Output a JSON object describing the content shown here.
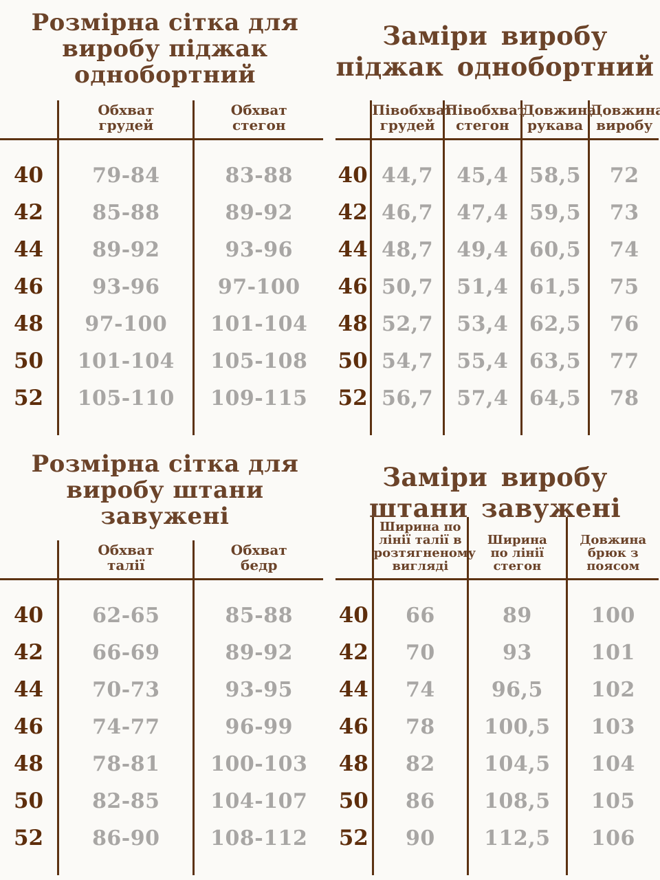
{
  "page": {
    "background": "#fbfaf7",
    "title_color": "#6b4329",
    "line_color": "#5c3212",
    "size_color": "#5e2e0c",
    "value_color": "#a8a6a4",
    "language": "uk"
  },
  "sizes": [
    "40",
    "42",
    "44",
    "46",
    "48",
    "50",
    "52"
  ],
  "tables": [
    {
      "name": "jacket-size-grid",
      "title": "Розмірна сітка для\nвиробу піджак\nоднобортний",
      "columns": [
        "Обхват\nгрудей",
        "Обхват\nстегон"
      ],
      "rows": [
        [
          "79-84",
          "83-88"
        ],
        [
          "85-88",
          "89-92"
        ],
        [
          "89-92",
          "93-96"
        ],
        [
          "93-96",
          "97-100"
        ],
        [
          "97-100",
          "101-104"
        ],
        [
          "101-104",
          "105-108"
        ],
        [
          "105-110",
          "109-115"
        ]
      ]
    },
    {
      "name": "jacket-measurements",
      "title": "Заміри виробу\nпіджак однобортний",
      "columns": [
        "Півобхват\nгрудей",
        "Півобхват\nстегон",
        "Довжина\nрукава",
        "Довжина\nвиробу"
      ],
      "rows": [
        [
          "44,7",
          "45,4",
          "58,5",
          "72"
        ],
        [
          "46,7",
          "47,4",
          "59,5",
          "73"
        ],
        [
          "48,7",
          "49,4",
          "60,5",
          "74"
        ],
        [
          "50,7",
          "51,4",
          "61,5",
          "75"
        ],
        [
          "52,7",
          "53,4",
          "62,5",
          "76"
        ],
        [
          "54,7",
          "55,4",
          "63,5",
          "77"
        ],
        [
          "56,7",
          "57,4",
          "64,5",
          "78"
        ]
      ]
    },
    {
      "name": "pants-size-grid",
      "title": "Розмірна сітка для\nвиробу штани\nзавужені",
      "columns": [
        "Обхват\nталії",
        "Обхват\nбедр"
      ],
      "rows": [
        [
          "62-65",
          "85-88"
        ],
        [
          "66-69",
          "89-92"
        ],
        [
          "70-73",
          "93-95"
        ],
        [
          "74-77",
          "96-99"
        ],
        [
          "78-81",
          "100-103"
        ],
        [
          "82-85",
          "104-107"
        ],
        [
          "86-90",
          "108-112"
        ]
      ]
    },
    {
      "name": "pants-measurements",
      "title": "Заміри виробу\nштани завужені",
      "columns": [
        "Ширина по\nлінії талії в\nрозтягненому\nвигляді",
        "Ширина\nпо лінії\nстегон",
        "Довжина\nбрюк з\nпоясом"
      ],
      "rows": [
        [
          "66",
          "89",
          "100"
        ],
        [
          "70",
          "93",
          "101"
        ],
        [
          "74",
          "96,5",
          "102"
        ],
        [
          "78",
          "100,5",
          "103"
        ],
        [
          "82",
          "104,5",
          "104"
        ],
        [
          "86",
          "108,5",
          "105"
        ],
        [
          "90",
          "112,5",
          "106"
        ]
      ]
    }
  ]
}
